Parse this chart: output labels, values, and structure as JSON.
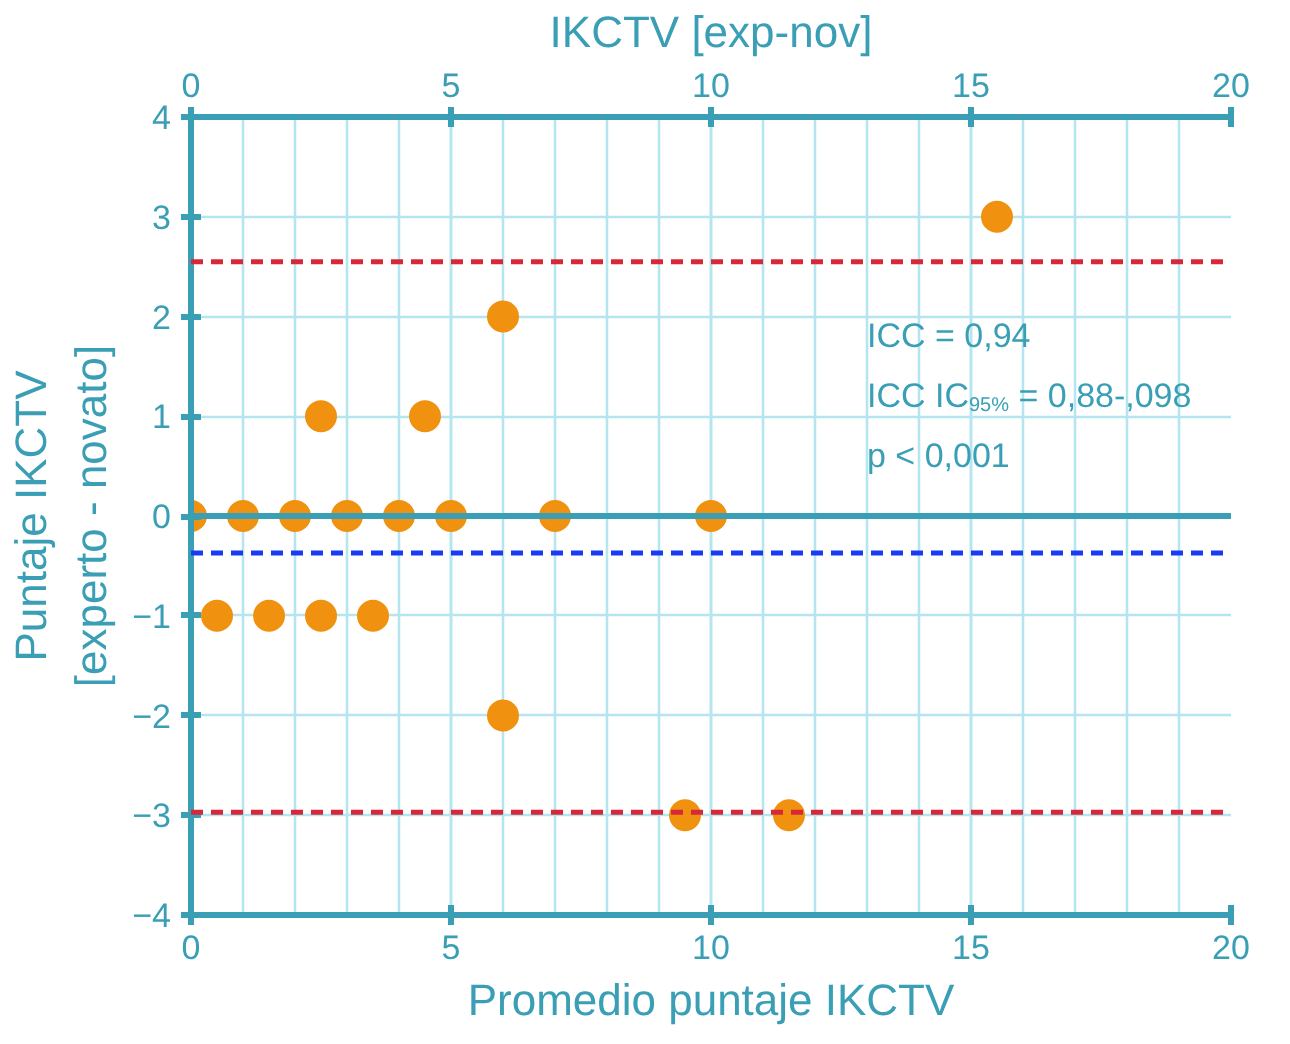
{
  "chart_data": {
    "type": "scatter",
    "xlabel": "Promedio puntaje IKCTV",
    "ylabel": "Puntaje IKCTV\n[experto - novato]",
    "x2label": "IKCTV [exp-nov]",
    "xlim": [
      0,
      20
    ],
    "xticks": [
      0,
      5,
      10,
      15,
      20
    ],
    "x2lim": [
      0,
      20
    ],
    "x2ticks": [
      0,
      5,
      10,
      15,
      20
    ],
    "ylim": [
      -4,
      4
    ],
    "yticks": [
      -4,
      -3,
      -2,
      -1,
      0,
      1,
      2,
      3,
      4
    ],
    "grid": true,
    "marker": "circle",
    "series": [
      {
        "color": "#f0920f",
        "x": [
          0,
          1,
          2,
          3,
          4,
          5,
          7,
          10,
          0.5,
          1.5,
          2.5,
          3.5,
          2.5,
          4.5,
          6,
          6,
          9.5,
          11.5,
          15.5
        ],
        "values": [
          0,
          0,
          0,
          0,
          0,
          0,
          0,
          0,
          -1,
          -1,
          -1,
          -1,
          1,
          1,
          2,
          -2,
          -3,
          -3,
          3
        ]
      }
    ],
    "ref_lines": [
      {
        "axis": "y",
        "value": 0,
        "color": "#3a9fb5",
        "line_style": "solid"
      },
      {
        "axis": "y",
        "value": -0.37,
        "color": "#1a3cf0",
        "line_style": "dashed"
      },
      {
        "axis": "y",
        "value": 2.55,
        "color": "#d62839",
        "line_style": "dashed"
      },
      {
        "axis": "y",
        "value": -2.97,
        "color": "#d62839",
        "line_style": "dashed"
      }
    ],
    "annotations": [
      "ICC = 0,94",
      "ICC IC$_{95%}$ = 0,88-,098",
      "p < 0,001"
    ]
  }
}
